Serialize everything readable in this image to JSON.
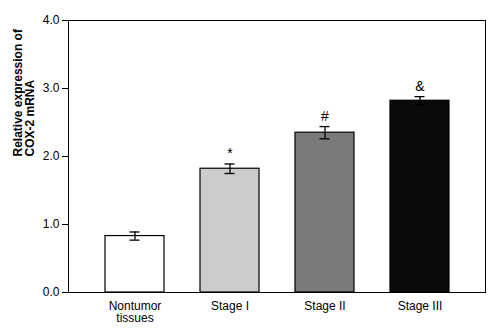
{
  "chart_data": {
    "type": "bar",
    "ylabel": "Relative expression of\nCOX-2 mRNA",
    "categories": [
      "Nontumor\ntissues",
      "Stage I",
      "Stage II",
      "Stage III"
    ],
    "values": [
      0.83,
      1.82,
      2.35,
      2.82
    ],
    "errors": [
      0.06,
      0.07,
      0.09,
      0.06
    ],
    "colors": [
      "#ffffff",
      "#cccccc",
      "#7a7a7a",
      "#0a0a0a"
    ],
    "annotations": [
      {
        "category": "Stage I",
        "text": "*"
      },
      {
        "category": "Stage II",
        "text": "#"
      },
      {
        "category": "Stage III",
        "text": "&"
      }
    ],
    "ylim": [
      0,
      4
    ],
    "yticks": [
      0,
      1,
      2,
      3,
      4
    ],
    "grid": false
  }
}
